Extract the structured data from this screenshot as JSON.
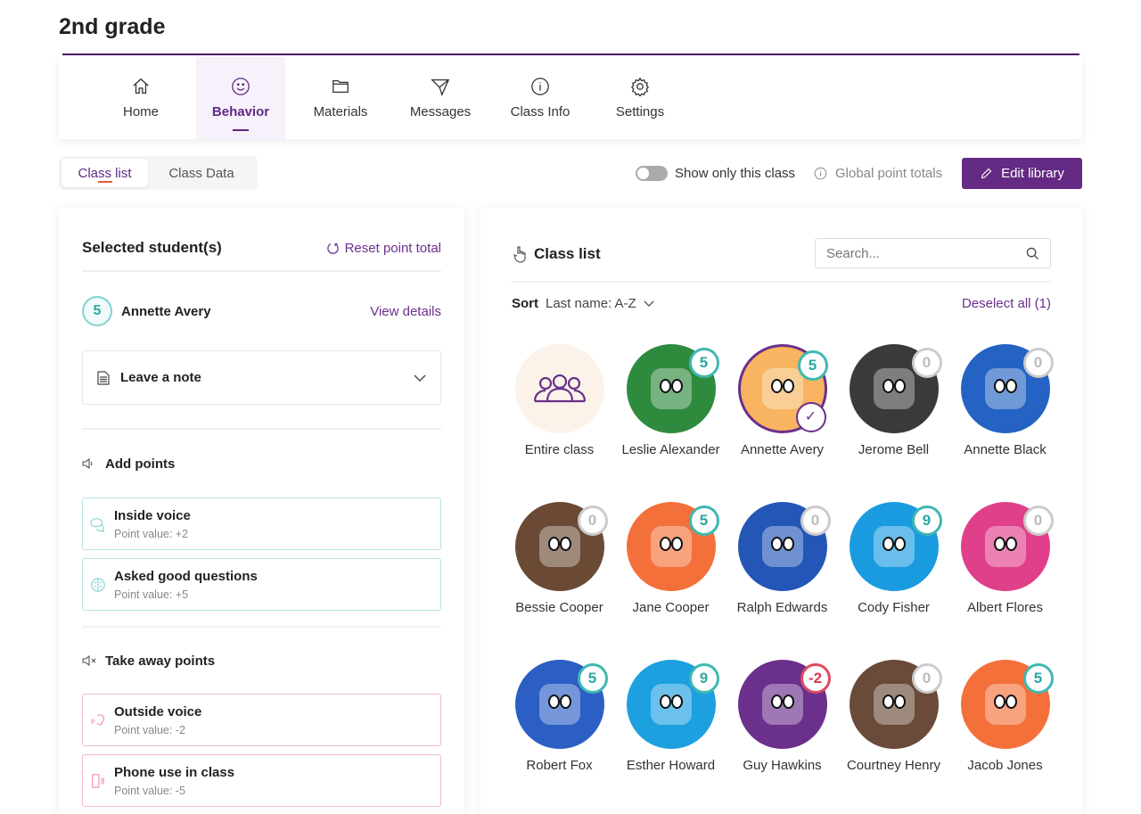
{
  "page_title": "2nd grade",
  "nav": [
    {
      "label": "Home",
      "icon": "home-icon"
    },
    {
      "label": "Behavior",
      "icon": "smile-icon",
      "active": true
    },
    {
      "label": "Materials",
      "icon": "folder-icon"
    },
    {
      "label": "Messages",
      "icon": "send-icon"
    },
    {
      "label": "Class Info",
      "icon": "info-icon"
    },
    {
      "label": "Settings",
      "icon": "gear-icon"
    }
  ],
  "subtabs": {
    "class_list": "Class list",
    "class_data": "Class Data"
  },
  "toolbar": {
    "toggle_label": "Show only this class",
    "toggle_on": false,
    "global_totals": "Global point totals",
    "edit_library": "Edit library"
  },
  "left": {
    "title": "Selected student(s)",
    "reset": "Reset point total",
    "student": {
      "points": "5",
      "name": "Annette Avery"
    },
    "view_details": "View details",
    "note": "Leave a note",
    "add_title": "Add points",
    "add": [
      {
        "title": "Inside voice",
        "value": "Point value: +2"
      },
      {
        "title": "Asked good questions",
        "value": "Point value: +5"
      }
    ],
    "take_title": "Take away points",
    "take": [
      {
        "title": "Outside voice",
        "value": "Point value: -2"
      },
      {
        "title": "Phone use in class",
        "value": "Point value: -5"
      }
    ]
  },
  "right": {
    "title": "Class list",
    "search_placeholder": "Search...",
    "sort_label": "Sort",
    "sort_value": "Last name: A-Z",
    "deselect": "Deselect all (1)",
    "entire_class": "Entire class",
    "students": [
      {
        "name": "Leslie Alexander",
        "points": "5",
        "color": "#2e8b3e"
      },
      {
        "name": "Annette Avery",
        "points": "5",
        "color": "#f8b460",
        "selected": true
      },
      {
        "name": "Jerome Bell",
        "points": "0",
        "color": "#3a3a3a"
      },
      {
        "name": "Annette Black",
        "points": "0",
        "color": "#2463c4"
      },
      {
        "name": "Bessie Cooper",
        "points": "0",
        "color": "#6b4a35"
      },
      {
        "name": "Jane Cooper",
        "points": "5",
        "color": "#f4703a"
      },
      {
        "name": "Ralph Edwards",
        "points": "0",
        "color": "#2456b8"
      },
      {
        "name": "Cody Fisher",
        "points": "9",
        "color": "#1a9be0"
      },
      {
        "name": "Albert Flores",
        "points": "0",
        "color": "#e0408a"
      },
      {
        "name": "Robert Fox",
        "points": "5",
        "color": "#2b5fc4"
      },
      {
        "name": "Esther Howard",
        "points": "9",
        "color": "#1da0e0"
      },
      {
        "name": "Guy Hawkins",
        "points": "-2",
        "color": "#6b2f8c"
      },
      {
        "name": "Courtney Henry",
        "points": "0",
        "color": "#6a4a38"
      },
      {
        "name": "Jacob Jones",
        "points": "5",
        "color": "#f4703a"
      }
    ]
  },
  "colors": {
    "accent": "#652a83",
    "positive": "#3fb8b0",
    "negative": "#e04a5f",
    "neutral": "#ccc"
  }
}
